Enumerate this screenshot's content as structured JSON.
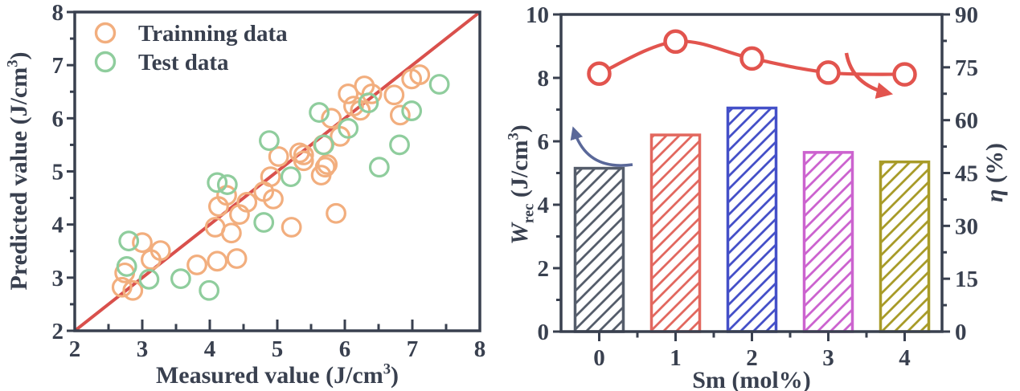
{
  "figure": {
    "background": "#ffffff",
    "axis_color": "#39404F",
    "tick_label_color": "#39404F"
  },
  "chart_data": [
    {
      "type": "scatter",
      "name": "prediction-parity-plot",
      "xlabel_parts": [
        {
          "t": "Measured value (J/cm"
        },
        {
          "t": "3",
          "sup": true
        },
        {
          "t": ")"
        }
      ],
      "ylabel_parts": [
        {
          "t": "Predicted value (J/cm"
        },
        {
          "t": "3",
          "sup": true
        },
        {
          "t": ")"
        }
      ],
      "xlim": [
        2,
        8
      ],
      "ylim": [
        2,
        8
      ],
      "x_tick_labels": [
        "2",
        "3",
        "4",
        "5",
        "6",
        "7",
        "8"
      ],
      "y_tick_labels": [
        "2",
        "3",
        "4",
        "5",
        "6",
        "7",
        "8"
      ],
      "major_tick_step": 1,
      "minor_tick_step": 0.5,
      "grid": false,
      "legend_position": "top-left",
      "identity_line": {
        "from": [
          2,
          2
        ],
        "to": [
          8,
          8
        ],
        "color": "#D9504C"
      },
      "legend": [
        {
          "label": "Trainning data",
          "color": "#F2AE7E"
        },
        {
          "label": "Test data",
          "color": "#8FCD9D"
        }
      ],
      "series": [
        {
          "name": "Trainning data",
          "color": "#F2AE7E",
          "points": [
            [
              2.7,
              2.82
            ],
            [
              2.86,
              2.76
            ],
            [
              2.74,
              3.09
            ],
            [
              3.0,
              3.66
            ],
            [
              3.13,
              3.34
            ],
            [
              3.27,
              3.51
            ],
            [
              3.81,
              3.24
            ],
            [
              4.11,
              3.31
            ],
            [
              4.4,
              3.36
            ],
            [
              4.13,
              4.34
            ],
            [
              4.08,
              3.95
            ],
            [
              4.44,
              4.19
            ],
            [
              4.32,
              3.84
            ],
            [
              4.25,
              4.55
            ],
            [
              4.55,
              4.42
            ],
            [
              4.8,
              4.62
            ],
            [
              4.9,
              4.9
            ],
            [
              4.94,
              4.48
            ],
            [
              5.02,
              5.28
            ],
            [
              5.21,
              3.95
            ],
            [
              5.33,
              5.35
            ],
            [
              5.39,
              5.2
            ],
            [
              5.39,
              5.31
            ],
            [
              5.65,
              4.93
            ],
            [
              5.71,
              5.08
            ],
            [
              5.68,
              5.5
            ],
            [
              5.74,
              5.13
            ],
            [
              5.8,
              6.0
            ],
            [
              5.87,
              4.21
            ],
            [
              5.93,
              5.66
            ],
            [
              6.05,
              6.46
            ],
            [
              6.13,
              6.23
            ],
            [
              6.23,
              6.15
            ],
            [
              6.29,
              6.61
            ],
            [
              6.4,
              6.46
            ],
            [
              6.73,
              6.44
            ],
            [
              6.82,
              6.06
            ],
            [
              6.99,
              6.74
            ],
            [
              7.11,
              6.82
            ]
          ]
        },
        {
          "name": "Test data",
          "color": "#8FCD9D",
          "points": [
            [
              2.8,
              3.69
            ],
            [
              2.77,
              3.21
            ],
            [
              3.1,
              2.97
            ],
            [
              3.57,
              2.98
            ],
            [
              3.99,
              2.76
            ],
            [
              4.11,
              4.79
            ],
            [
              4.26,
              4.75
            ],
            [
              4.8,
              4.04
            ],
            [
              5.2,
              4.9
            ],
            [
              4.88,
              5.58
            ],
            [
              5.62,
              6.11
            ],
            [
              5.69,
              5.5
            ],
            [
              6.05,
              5.81
            ],
            [
              6.35,
              6.29
            ],
            [
              6.51,
              5.08
            ],
            [
              6.81,
              5.5
            ],
            [
              6.99,
              6.14
            ],
            [
              7.4,
              6.64
            ]
          ]
        }
      ]
    },
    {
      "type": "bar+line",
      "name": "wrec-eta-vs-sm",
      "xlabel_parts": [
        {
          "t": "Sm (mol%)"
        }
      ],
      "ylabel_left_parts": [
        {
          "t": "W",
          "italic": true
        },
        {
          "t": "rec",
          "sub": true
        },
        {
          "t": " (J/cm"
        },
        {
          "t": "3",
          "sup": true
        },
        {
          "t": ")"
        }
      ],
      "ylabel_right_parts": [
        {
          "t": "η",
          "italic": true
        },
        {
          "t": " (%)"
        }
      ],
      "categories": [
        "0",
        "1",
        "2",
        "3",
        "4"
      ],
      "ylim_left": [
        0,
        10
      ],
      "ylim_right": [
        0,
        90
      ],
      "y_left_tick_labels": [
        "0",
        "2",
        "4",
        "6",
        "8",
        "10"
      ],
      "y_right_tick_labels": [
        "0",
        "15",
        "30",
        "45",
        "60",
        "75",
        "90"
      ],
      "bars": {
        "name": "Wrec",
        "values": [
          5.15,
          6.2,
          7.05,
          5.65,
          5.35
        ],
        "colors": [
          "#555D6B",
          "#E2685F",
          "#4450C8",
          "#CC63CF",
          "#A89B28"
        ],
        "hatch": "/",
        "fill": "#ffffff"
      },
      "line": {
        "name": "eta",
        "values": [
          73.2,
          82.3,
          77.5,
          73.5,
          73.0
        ],
        "color": "#E2544E",
        "marker": "open-circle"
      },
      "annotations": [
        {
          "name": "wrec-axis-arrow",
          "color": "#5A6899",
          "points_to": "left-axis"
        },
        {
          "name": "eta-axis-arrow",
          "color": "#E2544E",
          "points_to": "right-axis"
        }
      ]
    }
  ]
}
